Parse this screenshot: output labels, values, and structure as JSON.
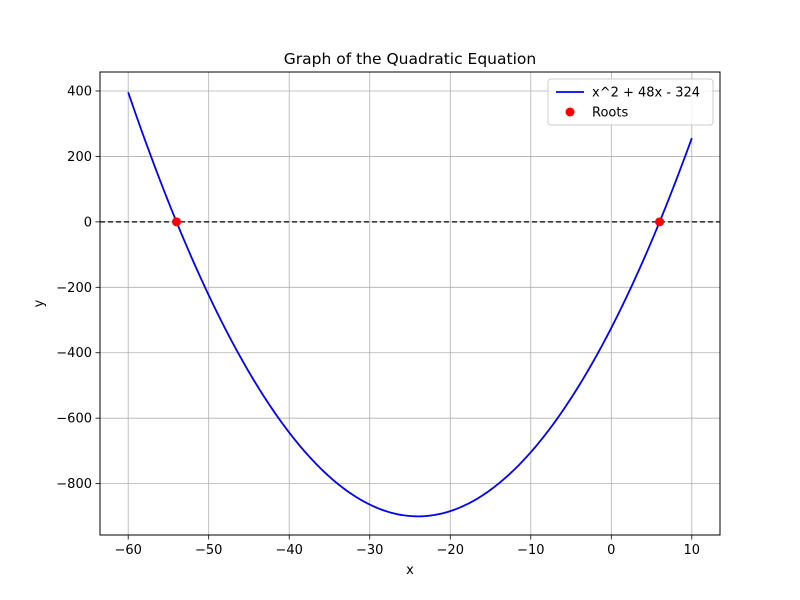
{
  "chart_data": {
    "type": "line",
    "title": "Graph of the Quadratic Equation",
    "xlabel": "x",
    "ylabel": "y",
    "xlim": [
      -63.5,
      13.5
    ],
    "ylim": [
      -957,
      458
    ],
    "x_ticks": [
      -60,
      -50,
      -40,
      -30,
      -20,
      -10,
      0,
      10
    ],
    "y_ticks": [
      400,
      200,
      0,
      -200,
      -400,
      -600,
      -800
    ],
    "x_tick_labels": [
      "−60",
      "−50",
      "−40",
      "−30",
      "−20",
      "−10",
      "0",
      "10"
    ],
    "y_tick_labels": [
      "400",
      "200",
      "0",
      "−200",
      "−400",
      "−600",
      "−800"
    ],
    "grid": true,
    "legend_position": "top-right",
    "series": [
      {
        "name": "x^2 + 48x - 324",
        "kind": "line",
        "color": "#0000ff",
        "equation": {
          "a": 1,
          "b": 48,
          "c": -324
        },
        "x_range": [
          -60,
          10
        ]
      },
      {
        "name": "Roots",
        "kind": "scatter",
        "color": "#ff0000",
        "points": [
          {
            "x": -54,
            "y": 0
          },
          {
            "x": 6,
            "y": 0
          }
        ]
      }
    ],
    "reference_lines": [
      {
        "orientation": "horizontal",
        "y": 0,
        "style": "dashed",
        "color": "#000000"
      }
    ]
  }
}
